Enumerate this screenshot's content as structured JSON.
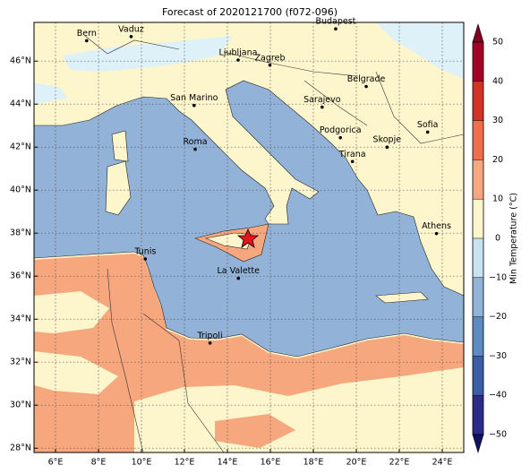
{
  "title": "Forecast of 2020121700 (f072-096)",
  "map": {
    "lon_range": [
      5,
      25
    ],
    "lat_range": [
      27.8,
      47.8
    ],
    "lon_ticks": [
      {
        "value": 6,
        "label": "6°E"
      },
      {
        "value": 8,
        "label": "8°E"
      },
      {
        "value": 10,
        "label": "10°E"
      },
      {
        "value": 12,
        "label": "12°E"
      },
      {
        "value": 14,
        "label": "14°E"
      },
      {
        "value": 16,
        "label": "16°E"
      },
      {
        "value": 18,
        "label": "18°E"
      },
      {
        "value": 20,
        "label": "20°E"
      },
      {
        "value": 22,
        "label": "22°E"
      },
      {
        "value": 24,
        "label": "24°E"
      }
    ],
    "lat_ticks": [
      {
        "value": 28,
        "label": "28°N"
      },
      {
        "value": 30,
        "label": "30°N"
      },
      {
        "value": 32,
        "label": "32°N"
      },
      {
        "value": 34,
        "label": "34°N"
      },
      {
        "value": 36,
        "label": "36°N"
      },
      {
        "value": 38,
        "label": "38°N"
      },
      {
        "value": 40,
        "label": "40°N"
      },
      {
        "value": 42,
        "label": "42°N"
      },
      {
        "value": 44,
        "label": "44°N"
      },
      {
        "value": 46,
        "label": "46°N"
      }
    ],
    "cities": [
      "Bern",
      "Vaduz",
      "Budapest",
      "Ljubljana",
      "Zagreb",
      "Belgrade",
      "San Marino",
      "Sarajevo",
      "Sofia",
      "Roma",
      "Podgorica",
      "Skopje",
      "Tirana",
      "Athens",
      "Tunis",
      "La Valette",
      "Tripoli"
    ]
  },
  "colorbar": {
    "label": "Min Temperature (°C)",
    "ticks": [
      {
        "value": -50,
        "label": "−50"
      },
      {
        "value": -40,
        "label": "−40"
      },
      {
        "value": -30,
        "label": "−30"
      },
      {
        "value": -20,
        "label": "−20"
      },
      {
        "value": -10,
        "label": "−10"
      },
      0,
      10,
      20,
      30,
      40,
      50
    ],
    "colors": [
      "#2b2b8c",
      "#3a5da8",
      "#5b8bc0",
      "#92b2d7",
      "#c7e3f0",
      "#fdf5cb",
      "#f6a77d",
      "#ef6f4d",
      "#d33227",
      "#a50026"
    ],
    "extend_colors": [
      "#111166",
      "#7f0020"
    ]
  }
}
